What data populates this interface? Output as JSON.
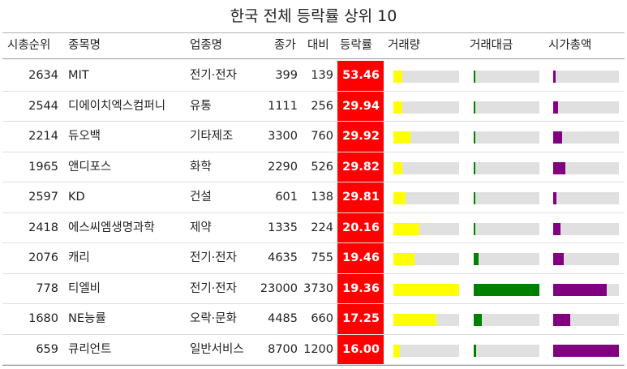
{
  "title": "한국 전체 등락률 상위 10",
  "headers": [
    "시총순위",
    "종목명",
    "업종명",
    "종가",
    "대비",
    "등락률",
    "거래량",
    "거래대금",
    "시가총액"
  ],
  "colors": {
    "rate_bg": "#ff0000",
    "volume": "#ffff00",
    "value": "#008000",
    "marketcap": "#800080",
    "track": "#e0e0e0"
  },
  "chart_data": {
    "type": "table",
    "title": "한국 전체 등락률 상위 10",
    "columns": [
      "시총순위",
      "종목명",
      "업종명",
      "종가",
      "대비",
      "등락률",
      "거래량",
      "거래대금",
      "시가총액"
    ],
    "bar_columns": [
      "거래량",
      "거래대금",
      "시가총액"
    ],
    "rows": [
      {
        "rank": "2634",
        "name": "MIT",
        "sector": "전기·전자",
        "close": "399",
        "change": "139",
        "rate": "53.46",
        "volume": 0.13,
        "value": 0.02,
        "marketcap": 0.04
      },
      {
        "rank": "2544",
        "name": "디에이치엑스컴퍼니",
        "sector": "유통",
        "close": "1111",
        "change": "256",
        "rate": "29.94",
        "volume": 0.13,
        "value": 0.02,
        "marketcap": 0.07
      },
      {
        "rank": "2214",
        "name": "듀오백",
        "sector": "기타제조",
        "close": "3300",
        "change": "760",
        "rate": "29.92",
        "volume": 0.26,
        "value": 0.03,
        "marketcap": 0.13
      },
      {
        "rank": "1965",
        "name": "앤디포스",
        "sector": "화학",
        "close": "2290",
        "change": "526",
        "rate": "29.82",
        "volume": 0.14,
        "value": 0.02,
        "marketcap": 0.18
      },
      {
        "rank": "2597",
        "name": "KD",
        "sector": "건설",
        "close": "601",
        "change": "138",
        "rate": "29.81",
        "volume": 0.19,
        "value": 0.02,
        "marketcap": 0.05
      },
      {
        "rank": "2418",
        "name": "에스씨엠생명과학",
        "sector": "제약",
        "close": "1335",
        "change": "224",
        "rate": "20.16",
        "volume": 0.4,
        "value": 0.03,
        "marketcap": 0.11
      },
      {
        "rank": "2076",
        "name": "캐리",
        "sector": "전기·전자",
        "close": "4635",
        "change": "755",
        "rate": "19.46",
        "volume": 0.32,
        "value": 0.07,
        "marketcap": 0.16
      },
      {
        "rank": "778",
        "name": "티엘비",
        "sector": "전기·전자",
        "close": "23000",
        "change": "3730",
        "rate": "19.36",
        "volume": 1.0,
        "value": 1.0,
        "marketcap": 0.81
      },
      {
        "rank": "1680",
        "name": "NE능률",
        "sector": "오락·문화",
        "close": "4485",
        "change": "660",
        "rate": "17.25",
        "volume": 0.66,
        "value": 0.12,
        "marketcap": 0.26
      },
      {
        "rank": "659",
        "name": "큐리언트",
        "sector": "일반서비스",
        "close": "8700",
        "change": "1200",
        "rate": "16.00",
        "volume": 0.1,
        "value": 0.04,
        "marketcap": 1.0
      }
    ]
  }
}
